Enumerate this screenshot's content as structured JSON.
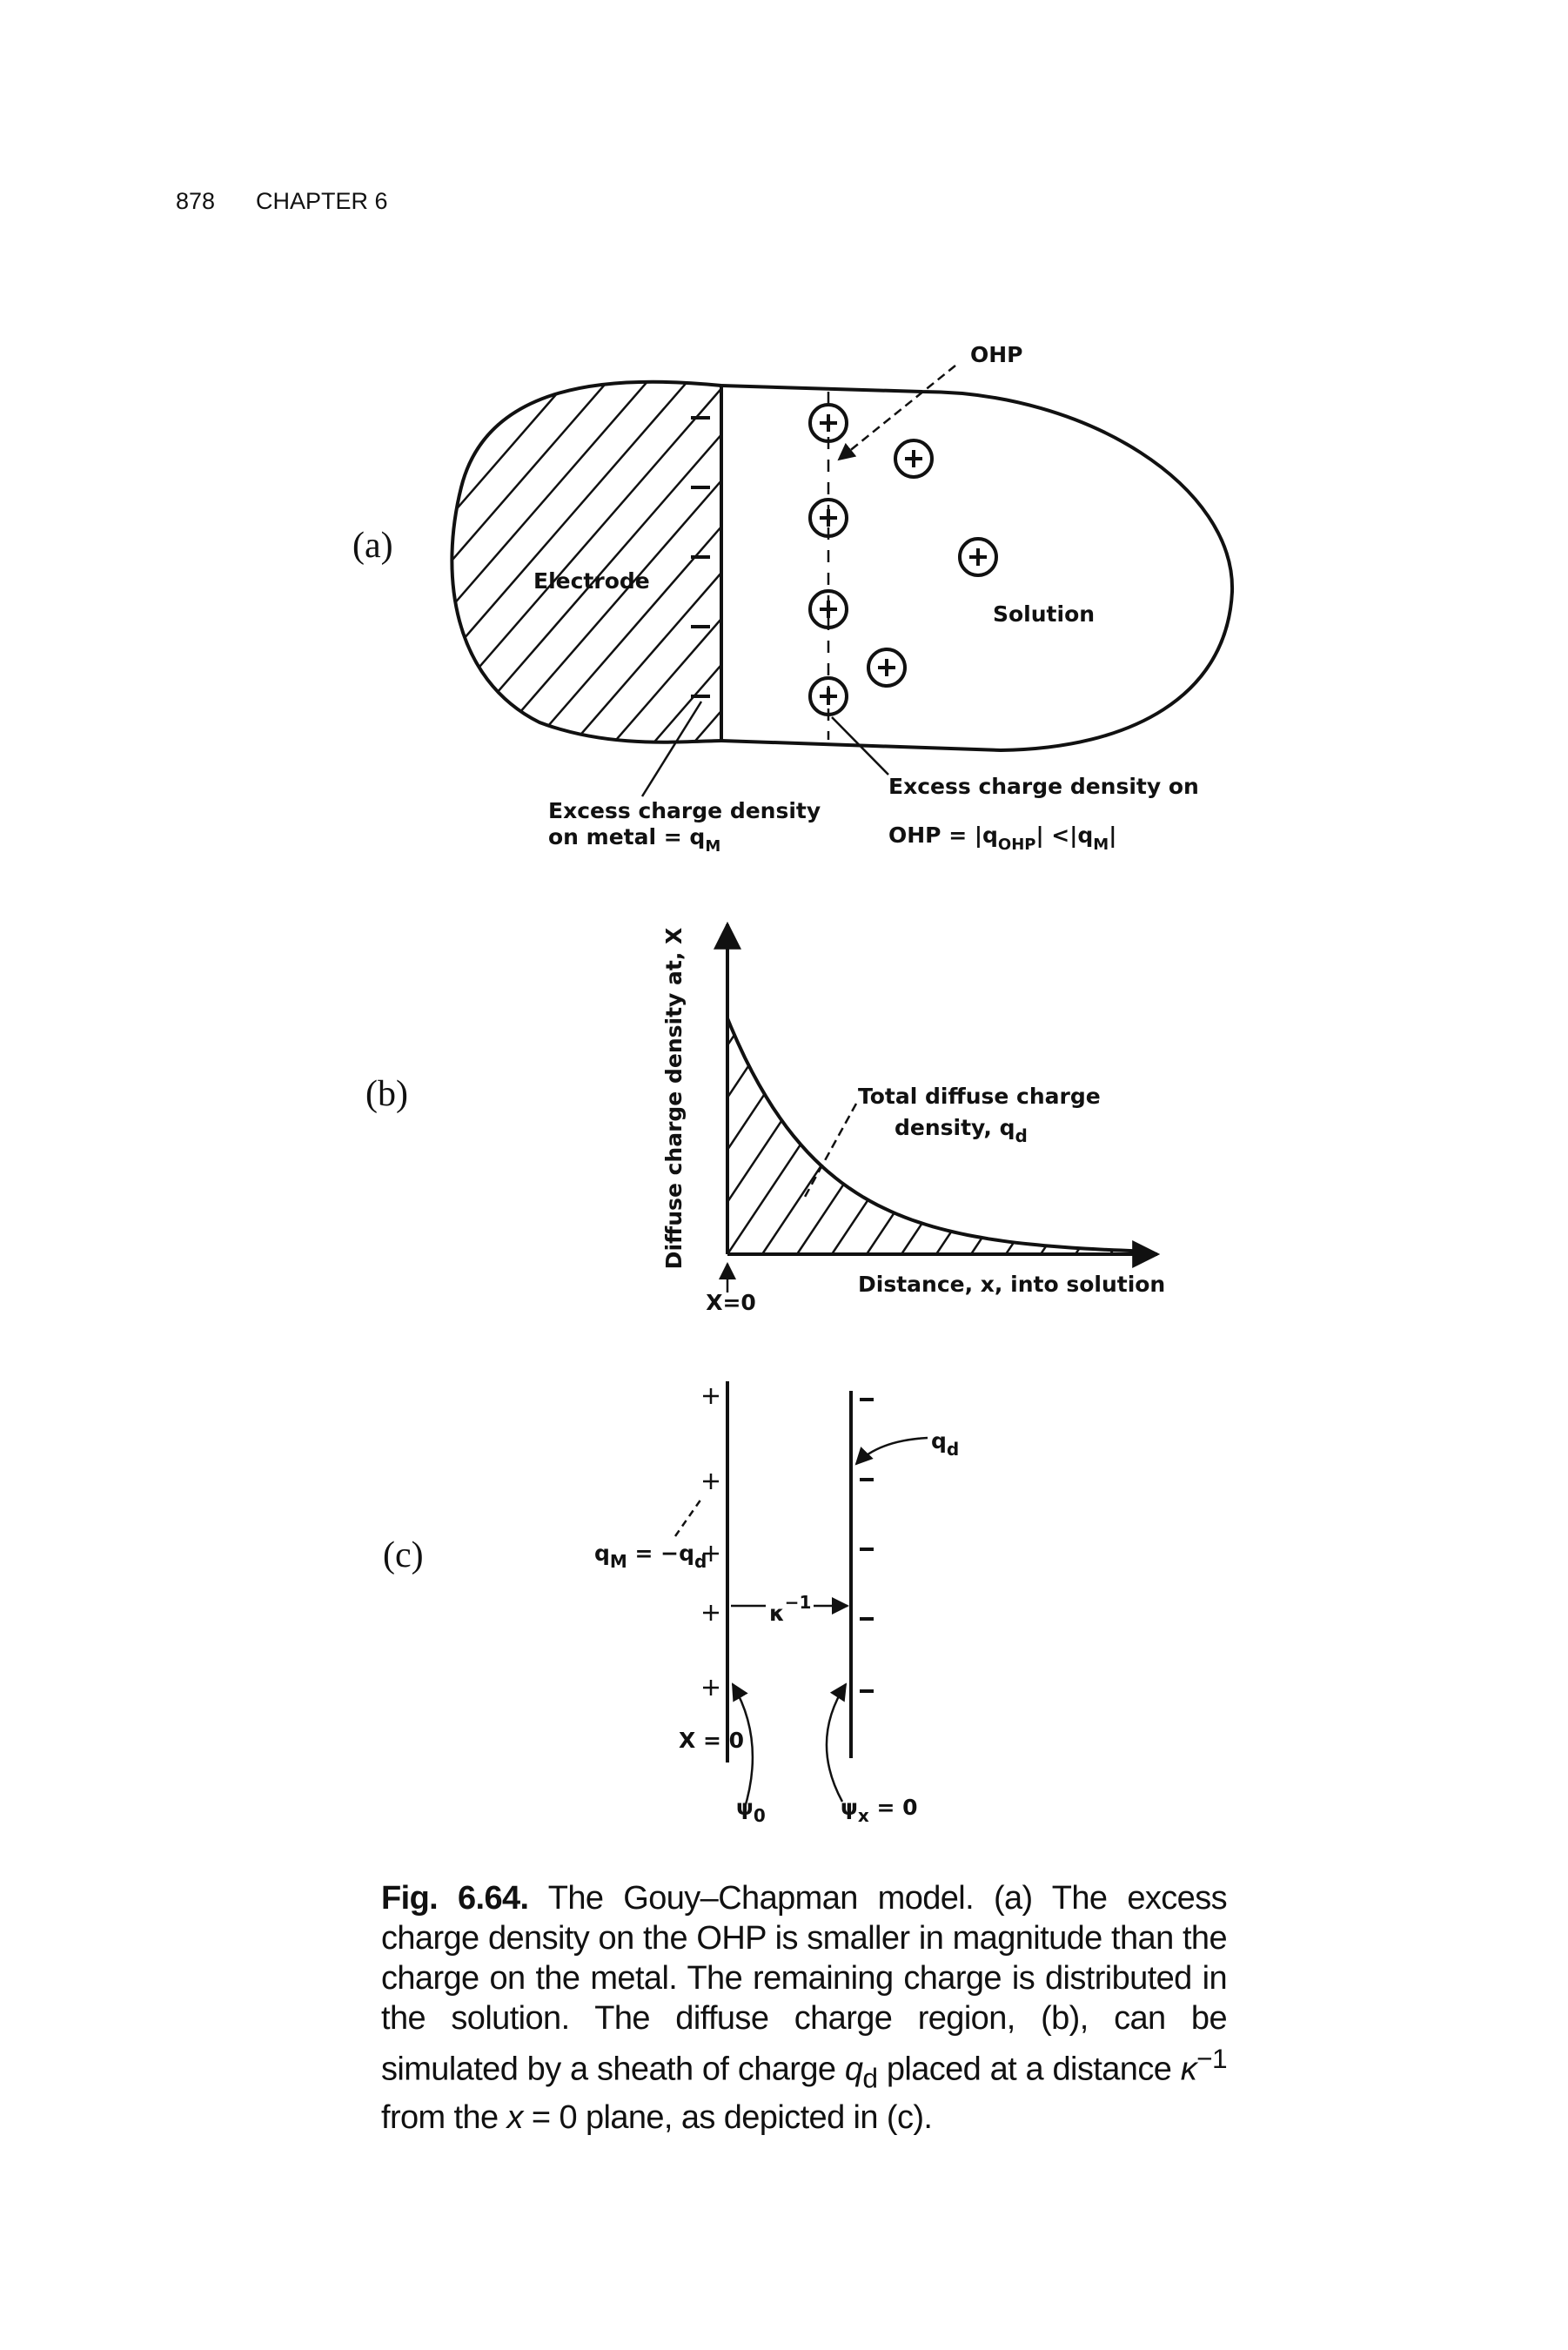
{
  "header": {
    "page_number": "878",
    "chapter": "CHAPTER 6"
  },
  "figure": {
    "panel_a": {
      "label": "(a)",
      "ohp": "OHP",
      "electrode": "Electrode",
      "solution": "Solution",
      "metal_charge": {
        "line1": "Excess charge density",
        "line2": "on metal = q",
        "sub": "M"
      },
      "ohp_charge": {
        "line1": "Excess charge density on",
        "line2": "OHP = |q",
        "sub1": "OHP",
        "mid": "| <|q",
        "sub2": "M",
        "end": "|"
      }
    },
    "panel_b": {
      "label": "(b)",
      "y_axis": "Diffuse charge density at, X",
      "x_axis": "Distance, x, into solution",
      "origin": "X=0",
      "annotation_line1": "Total diffuse charge",
      "annotation_line2": "density, q",
      "annotation_sub": "d"
    },
    "panel_c": {
      "label": "(c)",
      "sheath": "q",
      "sheath_sub": "d",
      "metal": "q",
      "metal_sub": "M",
      "eq": " = −q",
      "eq_sub": "d",
      "kappa": "κ",
      "kappa_sup": "−1",
      "origin": "X = 0",
      "psi0": "ψ",
      "psi0_sub": "0",
      "psix": "ψ",
      "psix_sub": "x",
      "psix_eq": " = 0"
    }
  },
  "caption": {
    "label": "Fig. 6.64.",
    "parts": [
      " The Gouy–Chapman model. (a) The excess charge density on the OHP is smaller in magnitude than the charge on the metal. The remaining charge is distributed in the solution. The diffuse charge region, (b), can be simulated by a sheath of charge ",
      "q",
      "d",
      " placed at a distance ",
      "κ",
      "−1",
      " from the ",
      "x",
      " = 0 plane, as depicted in (c)."
    ]
  }
}
